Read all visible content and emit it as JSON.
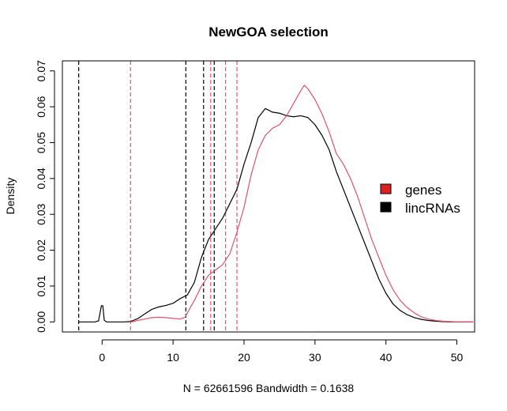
{
  "chart_data": {
    "type": "line",
    "title": "NewGOA selection",
    "xlabel": "N = 62661596   Bandwidth = 0.1638",
    "ylabel": "Density",
    "xlim": [
      -5.6,
      52.5
    ],
    "ylim": [
      -0.0028,
      0.0728
    ],
    "x_ticks": [
      0,
      10,
      20,
      30,
      40,
      50
    ],
    "x_tick_labels": [
      "0",
      "10",
      "20",
      "30",
      "40",
      "50"
    ],
    "y_ticks": [
      0.0,
      0.01,
      0.02,
      0.03,
      0.04,
      0.05,
      0.06,
      0.07
    ],
    "y_tick_labels": [
      "0.00",
      "0.01",
      "0.02",
      "0.03",
      "0.04",
      "0.05",
      "0.06",
      "0.07"
    ],
    "grid": false,
    "legend_position": "right",
    "legend": [
      {
        "label": "genes",
        "color": "#DF536B"
      },
      {
        "label": "lincRNAs",
        "color": "#000000"
      }
    ],
    "series": [
      {
        "name": "lincRNAs",
        "color": "#000000",
        "x": [
          -3.3,
          -1,
          -0.5,
          -0.1,
          0.1,
          0.3,
          0.6,
          1,
          2,
          3,
          4,
          5,
          6,
          7,
          8,
          9,
          10,
          11,
          12,
          13,
          14,
          15,
          16,
          17,
          18,
          19,
          20,
          21,
          22,
          23,
          24,
          25,
          26,
          27,
          28,
          29,
          30,
          31,
          32,
          33,
          34,
          35,
          36,
          37,
          38,
          39,
          40,
          41,
          42,
          43,
          44,
          45,
          46,
          47,
          48,
          49,
          50,
          52.3
        ],
        "y": [
          0.0,
          0.0,
          0.0003,
          0.0045,
          0.0045,
          0.0005,
          0.0,
          0.0,
          0.0,
          0.0,
          0.0001,
          0.0009,
          0.0022,
          0.0035,
          0.0042,
          0.0046,
          0.0052,
          0.0065,
          0.0075,
          0.011,
          0.018,
          0.023,
          0.026,
          0.029,
          0.033,
          0.037,
          0.044,
          0.05,
          0.057,
          0.0595,
          0.0585,
          0.0582,
          0.0575,
          0.0572,
          0.0575,
          0.057,
          0.055,
          0.052,
          0.048,
          0.042,
          0.037,
          0.032,
          0.027,
          0.022,
          0.017,
          0.012,
          0.008,
          0.005,
          0.0032,
          0.002,
          0.0012,
          0.0007,
          0.0004,
          0.0002,
          0.0001,
          0.0,
          0.0,
          0.0
        ]
      },
      {
        "name": "genes",
        "color": "#DF536B",
        "x": [
          3.9,
          4.5,
          5,
          6,
          7,
          8,
          9,
          10,
          11,
          11.7,
          12,
          13,
          14,
          15,
          16,
          17,
          18,
          19,
          20,
          21,
          22,
          23,
          24,
          25,
          26,
          27,
          28,
          28.5,
          29,
          30,
          31,
          32,
          33,
          34,
          35,
          36,
          37,
          38,
          39,
          40,
          41,
          42,
          43,
          44,
          45,
          46,
          47,
          48,
          50,
          52.3
        ],
        "y": [
          0.0,
          0.0001,
          0.0004,
          0.0008,
          0.0012,
          0.0013,
          0.0012,
          0.001,
          0.0008,
          0.0013,
          0.0025,
          0.006,
          0.01,
          0.013,
          0.0145,
          0.016,
          0.019,
          0.025,
          0.032,
          0.041,
          0.048,
          0.052,
          0.054,
          0.055,
          0.0575,
          0.061,
          0.0645,
          0.066,
          0.065,
          0.062,
          0.058,
          0.053,
          0.047,
          0.044,
          0.04,
          0.035,
          0.029,
          0.023,
          0.018,
          0.013,
          0.009,
          0.006,
          0.004,
          0.0025,
          0.0014,
          0.0008,
          0.0004,
          0.0002,
          0.0,
          0.0
        ]
      }
    ],
    "vlines": [
      {
        "x": -3.3,
        "color": "#000000",
        "style": "dashed"
      },
      {
        "x": 11.8,
        "color": "#000000",
        "style": "dashed"
      },
      {
        "x": 14.3,
        "color": "#000000",
        "style": "dashed"
      },
      {
        "x": 15.8,
        "color": "#000000",
        "style": "dashed"
      },
      {
        "x": 4.0,
        "color": "#DF536B",
        "style": "dashed"
      },
      {
        "x": 15.3,
        "color": "#DF536B",
        "style": "dashed"
      },
      {
        "x": 17.4,
        "color": "#DF536B",
        "style": "dashed"
      },
      {
        "x": 19.0,
        "color": "#DF536B",
        "style": "dashed"
      }
    ]
  }
}
